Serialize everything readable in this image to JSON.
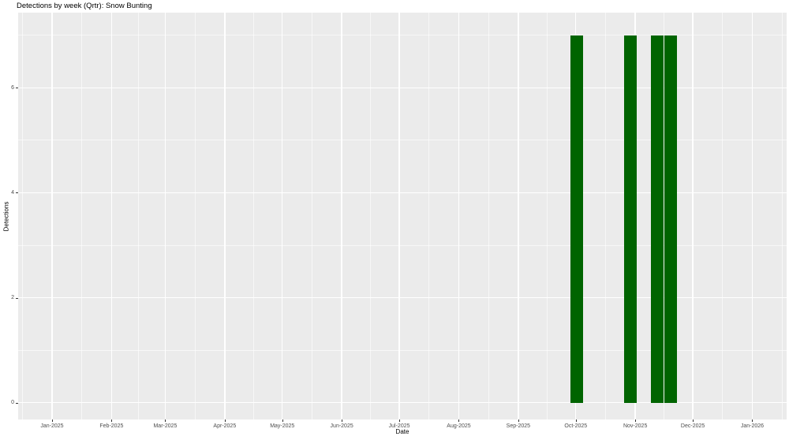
{
  "page": {
    "title": "Detections by week (Qrtr): Snow Bunting"
  },
  "chart_data": {
    "type": "bar",
    "title": "Detections by week (Qrtr): Snow Bunting",
    "xlabel": "Date",
    "ylabel": "Detections",
    "x_ticks": [
      {
        "label": "Jan-2025",
        "date": "2025-01-01"
      },
      {
        "label": "Feb-2025",
        "date": "2025-02-01"
      },
      {
        "label": "Mar-2025",
        "date": "2025-03-01"
      },
      {
        "label": "Apr-2025",
        "date": "2025-04-01"
      },
      {
        "label": "May-2025",
        "date": "2025-05-01"
      },
      {
        "label": "Jun-2025",
        "date": "2025-06-01"
      },
      {
        "label": "Jul-2025",
        "date": "2025-07-01"
      },
      {
        "label": "Aug-2025",
        "date": "2025-08-01"
      },
      {
        "label": "Sep-2025",
        "date": "2025-09-01"
      },
      {
        "label": "Oct-2025",
        "date": "2025-10-01"
      },
      {
        "label": "Nov-2025",
        "date": "2025-11-01"
      },
      {
        "label": "Dec-2025",
        "date": "2025-12-01"
      },
      {
        "label": "Jan-2026",
        "date": "2026-01-01"
      }
    ],
    "y_ticks": [
      0,
      2,
      4,
      6
    ],
    "y_minor_ticks": [
      1,
      3,
      5,
      7
    ],
    "ylim": [
      0,
      7.4
    ],
    "bars": [
      {
        "week_start": "2025-09-28",
        "value": 7
      },
      {
        "week_start": "2025-10-26",
        "value": 7
      },
      {
        "week_start": "2025-11-09",
        "value": 7
      },
      {
        "week_start": "2025-11-16",
        "value": 7
      }
    ],
    "bar_width_days": 6.3,
    "grid": true,
    "legend": "none",
    "colors": {
      "bar": "#006400",
      "panel_bg": "#EBEBEB",
      "grid": "#FFFFFF",
      "axis_text": "#4D4D4D",
      "tick_mark": "#333333",
      "title_text": "#000000"
    }
  }
}
